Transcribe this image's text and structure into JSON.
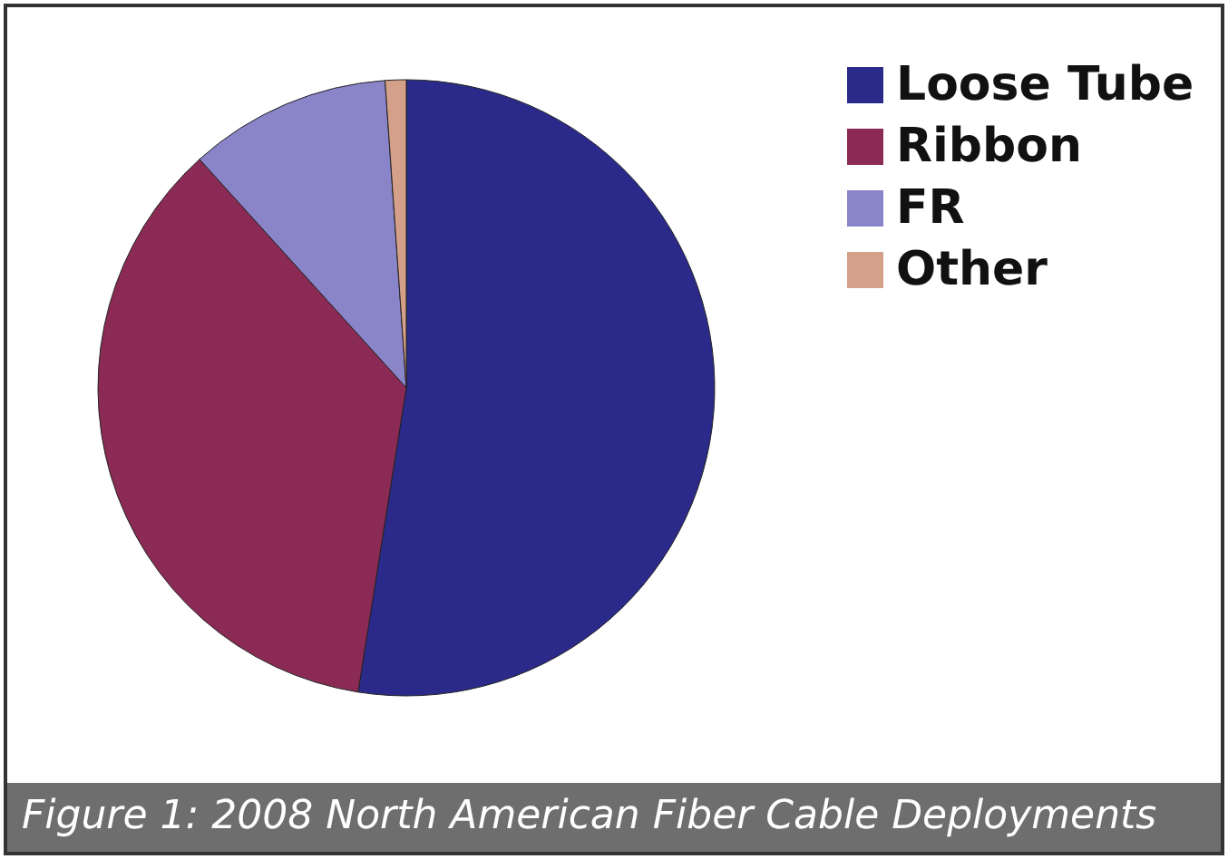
{
  "chart_data": {
    "type": "pie",
    "categories": [
      "Loose Tube",
      "Ribbon",
      "FR",
      "Other"
    ],
    "values": [
      52.5,
      35.8,
      10.6,
      1.1
    ],
    "colors": [
      "#2b2a8a",
      "#8b2a55",
      "#8a84c8",
      "#d4a08a"
    ],
    "legend": "right",
    "annotations": [
      "Figure 1: 2008 North American Fiber Cable Deployments"
    ]
  }
}
